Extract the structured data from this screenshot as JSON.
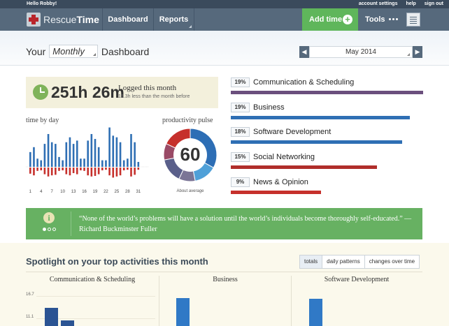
{
  "topbar": {
    "greeting": "Hello Robby!",
    "links": [
      "account settings",
      "help",
      "sign out"
    ]
  },
  "nav": {
    "brand_a": "Rescue",
    "brand_b": "Time",
    "items": [
      "Dashboard",
      "Reports"
    ],
    "add_time": "Add time",
    "add_icon": "+",
    "tools": "Tools"
  },
  "header": {
    "title_prefix": "Your",
    "period": "Monthly",
    "title_suffix": "Dashboard",
    "month": "May 2014",
    "prev_icon": "◀",
    "next_icon": "▶"
  },
  "logged": {
    "hours": "251h 26m",
    "label": "Logged this month",
    "sub": "18.3h less than the month before"
  },
  "time_by_day": {
    "label": "time by day",
    "x_ticks": [
      "1",
      "4",
      "7",
      "10",
      "13",
      "16",
      "19",
      "22",
      "25",
      "28",
      "31"
    ],
    "productive": [
      9,
      12,
      5,
      4,
      14,
      20,
      15,
      14,
      6,
      4,
      15,
      18,
      14,
      16,
      5,
      5,
      16,
      20,
      17,
      12,
      4,
      4,
      24,
      19,
      18,
      15,
      4,
      5,
      20,
      15,
      3
    ],
    "distracting": [
      11,
      14,
      6,
      5,
      12,
      16,
      14,
      13,
      6,
      5,
      12,
      14,
      10,
      12,
      5,
      6,
      14,
      16,
      15,
      12,
      5,
      4,
      14,
      18,
      16,
      14,
      5,
      4,
      16,
      13,
      4
    ],
    "colors": {
      "productive": "#2f6fb4",
      "distracting": "#c6302c"
    }
  },
  "pulse": {
    "label": "productivity pulse",
    "value": "60",
    "sub": "About average",
    "segments": [
      {
        "share": 0.33,
        "color": "#2d6eb5"
      },
      {
        "share": 0.14,
        "color": "#4fa0d8"
      },
      {
        "share": 0.1,
        "color": "#7b7596"
      },
      {
        "share": 0.15,
        "color": "#5a5f8a"
      },
      {
        "share": 0.1,
        "color": "#9a4a66"
      },
      {
        "share": 0.18,
        "color": "#c6302c"
      }
    ]
  },
  "categories": [
    {
      "pct": "19%",
      "name": "Communication & Scheduling",
      "fraction": 1.0,
      "color": "#6b4f7d"
    },
    {
      "pct": "19%",
      "name": "Business",
      "fraction": 0.93,
      "color": "#2f6fb4"
    },
    {
      "pct": "18%",
      "name": "Software Development",
      "fraction": 0.89,
      "color": "#2f6fb4"
    },
    {
      "pct": "15%",
      "name": "Social Networking",
      "fraction": 0.76,
      "color": "#b02e2b"
    },
    {
      "pct": "9%",
      "name": "News & Opinion",
      "fraction": 0.47,
      "color": "#c6302c"
    }
  ],
  "quote": {
    "text": "“None of the world’s problems will have a solution until the world’s individuals become thoroughly self-educated.” — Richard Buckminster Fuller",
    "info_icon": "i"
  },
  "spotlight": {
    "title": "Spotlight on your top activities this month",
    "tabs": [
      "totals",
      "daily patterns",
      "changes over time"
    ],
    "columns": [
      "Communication & Scheduling",
      "Business",
      "Software Development"
    ],
    "y_ticks": [
      "16.7",
      "11.1"
    ],
    "chart_data": [
      {
        "type": "bar",
        "title": "Communication & Scheduling",
        "categories": [
          "",
          "",
          ""
        ],
        "values": [
          13.8,
          10.5,
          8.5
        ],
        "colors": [
          "#2b5493",
          "#2b5493",
          "#b02e2b"
        ],
        "ylim": [
          0,
          18
        ]
      },
      {
        "type": "bar",
        "title": "Business",
        "categories": [
          ""
        ],
        "values": [
          16.2
        ],
        "colors": [
          "#3079c6"
        ],
        "ylim": [
          0,
          18
        ]
      },
      {
        "type": "bar",
        "title": "Software Development",
        "categories": [
          ""
        ],
        "values": [
          16.0
        ],
        "colors": [
          "#3079c6"
        ],
        "ylim": [
          0,
          18
        ]
      }
    ]
  }
}
